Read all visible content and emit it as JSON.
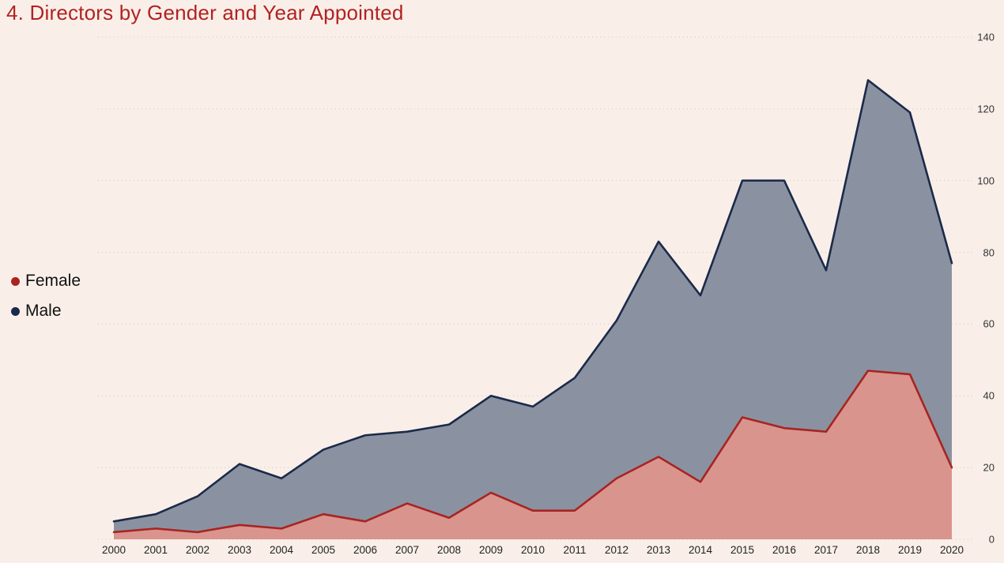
{
  "chart_data": {
    "type": "area",
    "stacked": true,
    "title": "4. Directors by Gender and Year Appointed",
    "categories": [
      "2000",
      "2001",
      "2002",
      "2003",
      "2004",
      "2005",
      "2006",
      "2007",
      "2008",
      "2009",
      "2010",
      "2011",
      "2012",
      "2013",
      "2014",
      "2015",
      "2016",
      "2017",
      "2018",
      "2019",
      "2020"
    ],
    "series": [
      {
        "name": "Female",
        "values": [
          2,
          3,
          2,
          4,
          3,
          7,
          5,
          10,
          6,
          13,
          8,
          8,
          17,
          23,
          16,
          34,
          31,
          30,
          47,
          46,
          20
        ],
        "line_color": "#a82421",
        "fill_color": "#d9948e"
      },
      {
        "name": "Male",
        "values": [
          3,
          4,
          10,
          17,
          14,
          18,
          24,
          20,
          26,
          27,
          29,
          37,
          44,
          60,
          52,
          66,
          69,
          45,
          81,
          73,
          57
        ],
        "line_color": "#1b2a4a",
        "fill_color": "#8a92a1"
      }
    ],
    "xlabel": "",
    "ylabel": "",
    "ylim": [
      0,
      140
    ],
    "y_ticks": [
      0,
      20,
      40,
      60,
      80,
      100,
      120,
      140
    ],
    "grid": "dotted-horizontal",
    "legend_position": "left-middle",
    "y_axis_side": "right"
  },
  "colors": {
    "background": "#f9efe8",
    "title": "#b22222",
    "grid": "#c9c9c9",
    "y_axis_text": "#333333",
    "x_axis_text": "#222222",
    "legend_text": "#111111"
  }
}
